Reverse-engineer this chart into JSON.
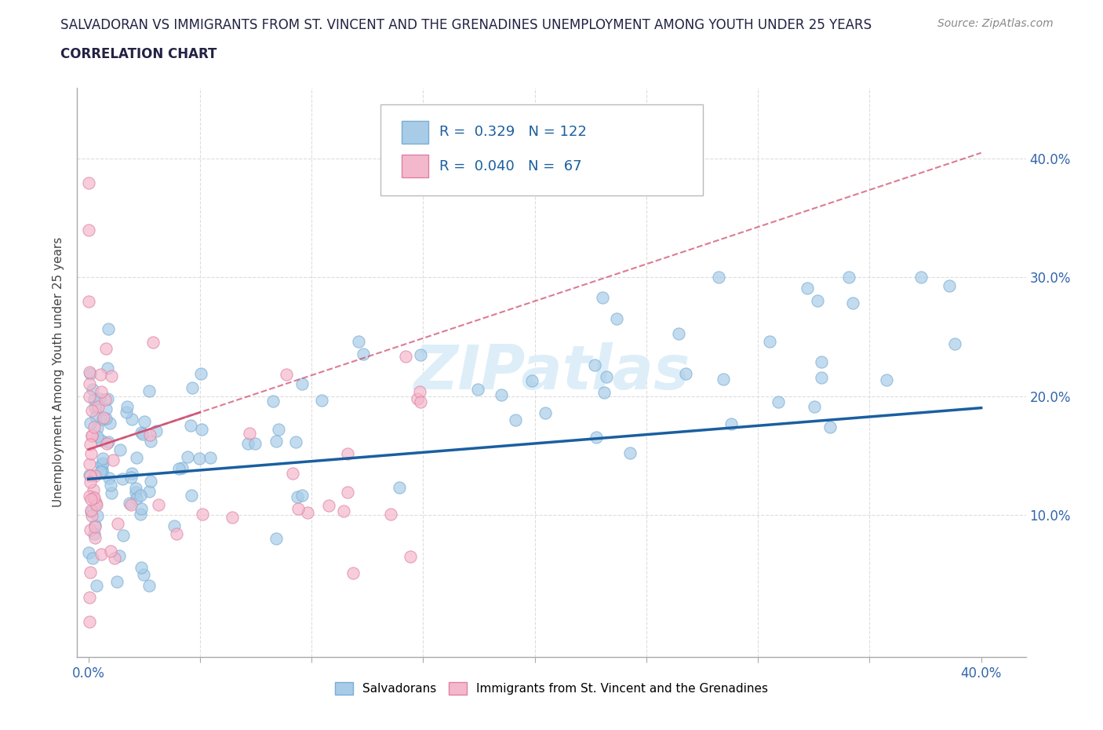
{
  "title_line1": "SALVADORAN VS IMMIGRANTS FROM ST. VINCENT AND THE GRENADINES UNEMPLOYMENT AMONG YOUTH UNDER 25 YEARS",
  "title_line2": "CORRELATION CHART",
  "source": "Source: ZipAtlas.com",
  "ylabel": "Unemployment Among Youth under 25 years",
  "xlim": [
    0.0,
    0.42
  ],
  "ylim": [
    -0.02,
    0.46
  ],
  "plot_xlim": [
    0.0,
    0.4
  ],
  "plot_ylim": [
    0.0,
    0.44
  ],
  "salvadoran_R": 0.329,
  "salvadoran_N": 122,
  "stvinc_R": 0.04,
  "stvinc_N": 67,
  "salvadoran_color": "#a8cce8",
  "salvadoran_edge_color": "#7aadd4",
  "salvadoran_line_color": "#1a5fa0",
  "stvinc_color": "#f4b8cc",
  "stvinc_edge_color": "#e080a0",
  "stvinc_line_color": "#d05070",
  "watermark_color": "#ddeef8",
  "background_color": "#ffffff",
  "grid_color": "#dddddd",
  "tick_label_color": "#3366aa",
  "salv_line_x0": 0.0,
  "salv_line_y0": 0.13,
  "salv_line_x1": 0.4,
  "salv_line_y1": 0.19,
  "stv_line_x0": 0.0,
  "stv_line_y0": 0.155,
  "stv_line_x1": 0.4,
  "stv_line_y1": 0.405
}
